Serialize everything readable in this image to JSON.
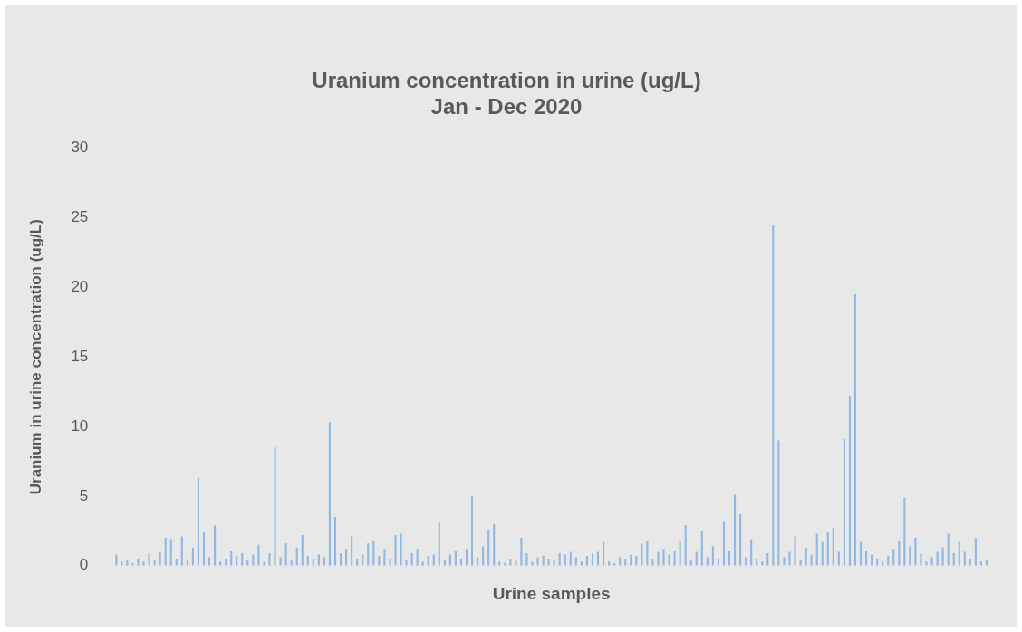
{
  "chart_data": {
    "type": "bar",
    "title": "Uranium concentration in urine (ug/L)\nJan - Dec 2020",
    "xlabel": "Urine samples",
    "ylabel": "Uranium in urine concentration (ug/L)",
    "categories": [
      null,
      null,
      null,
      null,
      null,
      null,
      null,
      null,
      null,
      null,
      null,
      null,
      null,
      null,
      null,
      null,
      null,
      null,
      null,
      null,
      null,
      null,
      null,
      null,
      null,
      null,
      null,
      null,
      null,
      null,
      null,
      null,
      null,
      null,
      null,
      null,
      null,
      null,
      null,
      null,
      null,
      null,
      null,
      null,
      null,
      null,
      null,
      null,
      null,
      null,
      null,
      null,
      null,
      null,
      null,
      null,
      null,
      null,
      null,
      null,
      null,
      null,
      null,
      null,
      null,
      null,
      null,
      null,
      null,
      null,
      null,
      null,
      null,
      null,
      null,
      null,
      null,
      null,
      null,
      null,
      null,
      null,
      null,
      null,
      null,
      null,
      null,
      null,
      null,
      null,
      null,
      null,
      null,
      null,
      null,
      null,
      null,
      null,
      null,
      null,
      null,
      null,
      null,
      null,
      null,
      null,
      null,
      null,
      null,
      null,
      null,
      null,
      null,
      null,
      null,
      null,
      null,
      null,
      null,
      null,
      null,
      null,
      null,
      null,
      null,
      null,
      null,
      null,
      null,
      null,
      null,
      null,
      null,
      null,
      null,
      null,
      null,
      null,
      null,
      null,
      null,
      null,
      null,
      null,
      null,
      null,
      null,
      null,
      null,
      null,
      null,
      null,
      null,
      null,
      null,
      null,
      null,
      null,
      null,
      null
    ],
    "values": [
      0.8,
      0.3,
      0.4,
      0.2,
      0.5,
      0.3,
      0.9,
      0.4,
      1.0,
      2.0,
      1.9,
      0.5,
      2.1,
      0.4,
      1.3,
      6.3,
      2.4,
      0.6,
      2.9,
      0.3,
      0.5,
      1.1,
      0.7,
      0.9,
      0.4,
      0.8,
      1.5,
      0.3,
      0.9,
      8.5,
      0.6,
      1.6,
      0.4,
      1.3,
      2.2,
      0.7,
      0.5,
      0.8,
      0.6,
      10.3,
      3.5,
      0.9,
      1.2,
      2.1,
      0.5,
      0.8,
      1.6,
      1.8,
      0.7,
      1.2,
      0.5,
      2.2,
      2.3,
      0.4,
      0.9,
      1.2,
      0.3,
      0.7,
      0.8,
      3.1,
      0.4,
      0.8,
      1.1,
      0.5,
      1.2,
      5.0,
      0.6,
      1.4,
      2.6,
      3.0,
      0.3,
      0.2,
      0.5,
      0.4,
      2.0,
      0.9,
      0.3,
      0.6,
      0.7,
      0.5,
      0.4,
      0.9,
      0.8,
      1.0,
      0.6,
      0.3,
      0.7,
      0.9,
      1.0,
      1.8,
      0.3,
      0.2,
      0.6,
      0.5,
      0.8,
      0.7,
      1.6,
      1.8,
      0.5,
      1.0,
      1.2,
      0.8,
      1.1,
      1.8,
      2.9,
      0.4,
      1.0,
      2.5,
      0.6,
      1.4,
      0.5,
      3.2,
      1.1,
      5.1,
      3.7,
      0.6,
      1.9,
      0.5,
      0.3,
      0.9,
      24.5,
      9.0,
      0.6,
      1.0,
      2.1,
      0.4,
      1.3,
      0.8,
      2.3,
      1.7,
      2.4,
      2.7,
      1.0,
      9.1,
      12.2,
      19.5,
      1.7,
      1.1,
      0.8,
      0.5,
      0.3,
      0.7,
      1.2,
      1.8,
      4.9,
      1.4,
      2.0,
      0.9,
      0.3,
      0.6,
      1.0,
      1.3,
      2.3,
      0.9,
      1.8,
      1.0,
      0.5,
      2.0,
      0.3,
      0.4
    ],
    "color": "#8fb8e3",
    "ylim": [
      0,
      30
    ],
    "yticks": [
      0,
      5,
      10,
      15,
      20,
      25,
      30
    ],
    "grid": false,
    "legend": false
  }
}
